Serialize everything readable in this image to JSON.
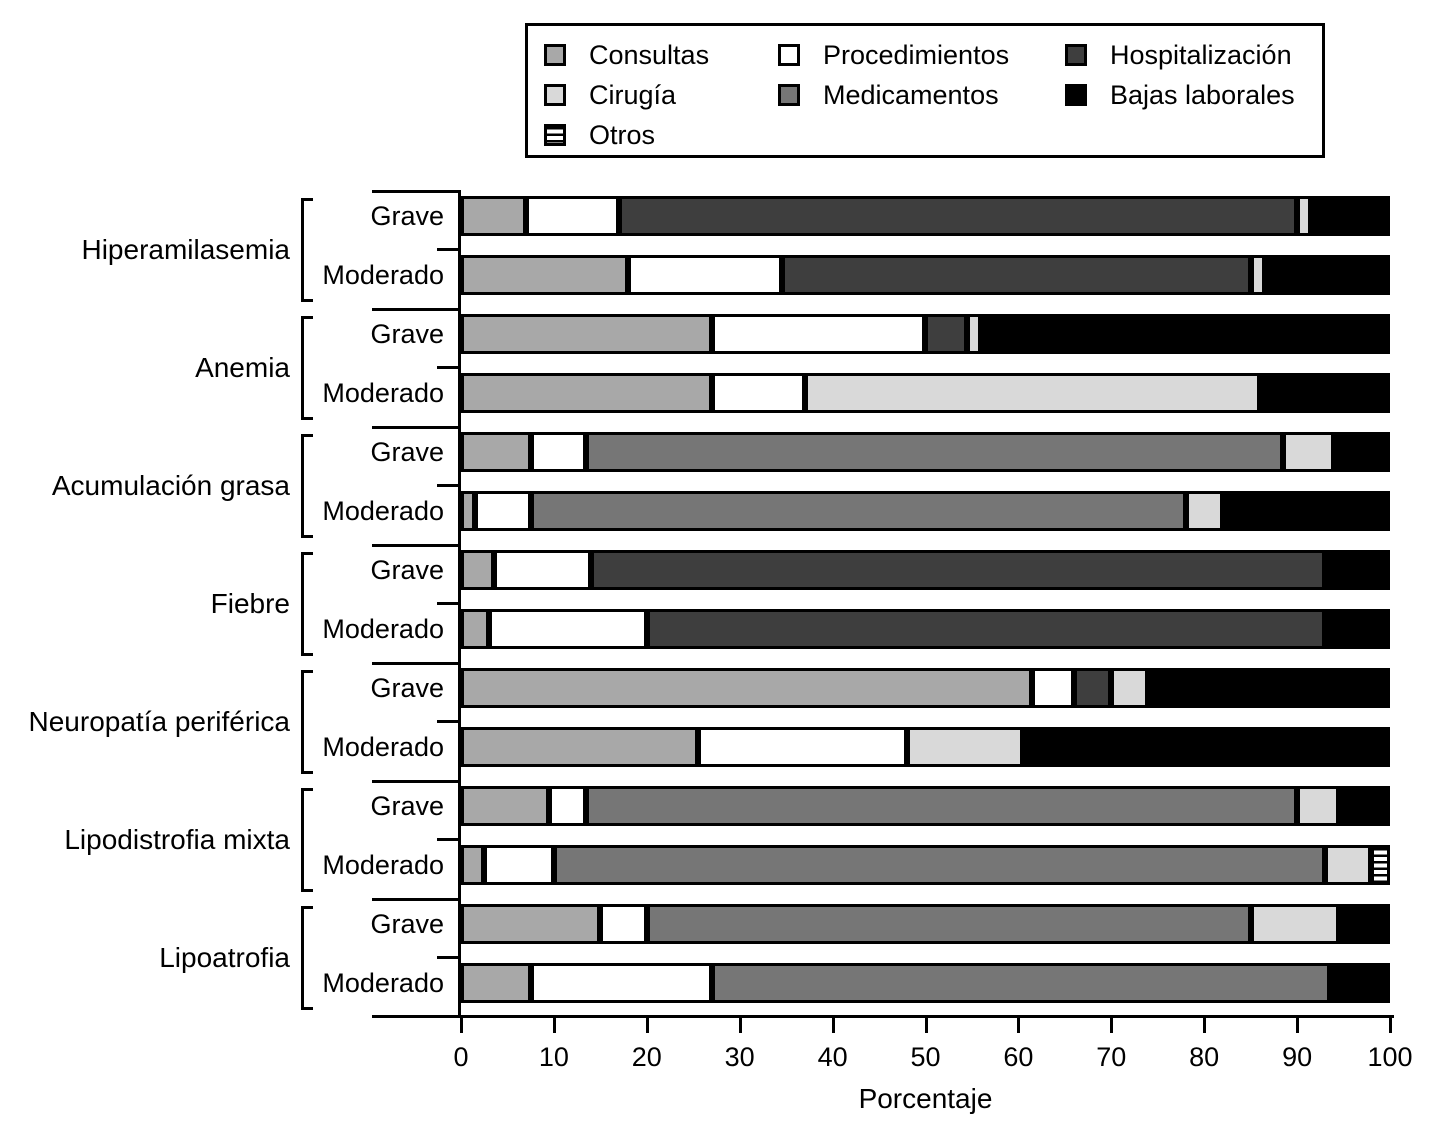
{
  "chart_data": {
    "type": "bar",
    "orientation": "horizontal",
    "stacked": true,
    "unit": "percent",
    "title": "",
    "xlabel": "Porcentaje",
    "xlim": [
      0,
      100
    ],
    "x_ticks": [
      0,
      10,
      20,
      30,
      40,
      50,
      60,
      70,
      80,
      90,
      100
    ],
    "grid": false,
    "legend_position": "top",
    "legend": [
      {
        "name": "Consultas",
        "color": "#a8a8a8",
        "pattern": "solid",
        "column": 0
      },
      {
        "name": "Cirugía",
        "color": "#d9d9d9",
        "pattern": "solid",
        "column": 0
      },
      {
        "name": "Otros",
        "color": "#ffffff",
        "pattern": "hstripes",
        "column": 0
      },
      {
        "name": "Procedimientos",
        "color": "#ffffff",
        "pattern": "solid",
        "column": 1
      },
      {
        "name": "Medicamentos",
        "color": "#767676",
        "pattern": "solid",
        "column": 1
      },
      {
        "name": "Hospitalización",
        "color": "#3e3e3e",
        "pattern": "solid",
        "column": 2
      },
      {
        "name": "Bajas laborales",
        "color": "#000000",
        "pattern": "solid",
        "column": 2
      }
    ],
    "groups": [
      {
        "label": "Hiperamilasemia",
        "bars": [
          {
            "severity": "Grave",
            "segments": [
              [
                "Consultas",
                7
              ],
              [
                "Procedimientos",
                10
              ],
              [
                "Hospitalización",
                73
              ],
              [
                "Cirugía",
                1.5
              ],
              [
                "Bajas laborales",
                8.5
              ]
            ]
          },
          {
            "severity": "Moderado",
            "segments": [
              [
                "Consultas",
                18
              ],
              [
                "Procedimientos",
                16.5
              ],
              [
                "Hospitalización",
                50.5
              ],
              [
                "Cirugía",
                1.5
              ],
              [
                "Bajas laborales",
                13.5
              ]
            ]
          }
        ]
      },
      {
        "label": "Anemia",
        "bars": [
          {
            "severity": "Grave",
            "segments": [
              [
                "Consultas",
                27
              ],
              [
                "Procedimientos",
                23
              ],
              [
                "Hospitalización",
                4.5
              ],
              [
                "Cirugía",
                1.5
              ],
              [
                "Bajas laborales",
                44
              ]
            ]
          },
          {
            "severity": "Moderado",
            "segments": [
              [
                "Consultas",
                27
              ],
              [
                "Procedimientos",
                10
              ],
              [
                "Cirugía",
                49
              ],
              [
                "Bajas laborales",
                14
              ]
            ]
          }
        ]
      },
      {
        "label": "Acumulación grasa",
        "bars": [
          {
            "severity": "Grave",
            "segments": [
              [
                "Consultas",
                7.5
              ],
              [
                "Procedimientos",
                6
              ],
              [
                "Medicamentos",
                75
              ],
              [
                "Cirugía",
                5.5
              ],
              [
                "Bajas laborales",
                6
              ]
            ]
          },
          {
            "severity": "Moderado",
            "segments": [
              [
                "Consultas",
                1.5
              ],
              [
                "Procedimientos",
                6
              ],
              [
                "Medicamentos",
                70.5
              ],
              [
                "Cirugía",
                4
              ],
              [
                "Bajas laborales",
                18
              ]
            ]
          }
        ]
      },
      {
        "label": "Fiebre",
        "bars": [
          {
            "severity": "Grave",
            "segments": [
              [
                "Consultas",
                3.5
              ],
              [
                "Procedimientos",
                10.5
              ],
              [
                "Hospitalización",
                79
              ],
              [
                "Bajas laborales",
                7
              ]
            ]
          },
          {
            "severity": "Moderado",
            "segments": [
              [
                "Consultas",
                3
              ],
              [
                "Procedimientos",
                17
              ],
              [
                "Hospitalización",
                73
              ],
              [
                "Bajas laborales",
                7
              ]
            ]
          }
        ]
      },
      {
        "label": "Neuropatía periférica",
        "bars": [
          {
            "severity": "Grave",
            "segments": [
              [
                "Consultas",
                61.5
              ],
              [
                "Procedimientos",
                4.5
              ],
              [
                "Hospitalización",
                4
              ],
              [
                "Cirugía",
                4
              ],
              [
                "Bajas laborales",
                26
              ]
            ]
          },
          {
            "severity": "Moderado",
            "segments": [
              [
                "Consultas",
                25.5
              ],
              [
                "Procedimientos",
                22.5
              ],
              [
                "Cirugía",
                12.5
              ],
              [
                "Bajas laborales",
                39.5
              ]
            ]
          }
        ]
      },
      {
        "label": "Lipodistrofia mixta",
        "bars": [
          {
            "severity": "Grave",
            "segments": [
              [
                "Consultas",
                9.5
              ],
              [
                "Procedimientos",
                4
              ],
              [
                "Medicamentos",
                76.5
              ],
              [
                "Cirugía",
                4.5
              ],
              [
                "Bajas laborales",
                5.5
              ]
            ]
          },
          {
            "severity": "Moderado",
            "segments": [
              [
                "Consultas",
                2.5
              ],
              [
                "Procedimientos",
                7.5
              ],
              [
                "Medicamentos",
                83
              ],
              [
                "Cirugía",
                5
              ],
              [
                "Otros",
                2
              ]
            ]
          }
        ]
      },
      {
        "label": "Lipoatrofia",
        "bars": [
          {
            "severity": "Grave",
            "segments": [
              [
                "Consultas",
                15
              ],
              [
                "Procedimientos",
                5
              ],
              [
                "Medicamentos",
                65
              ],
              [
                "Cirugía",
                9.5
              ],
              [
                "Bajas laborales",
                5.5
              ]
            ]
          },
          {
            "severity": "Moderado",
            "segments": [
              [
                "Consultas",
                7.5
              ],
              [
                "Procedimientos",
                19.5
              ],
              [
                "Medicamentos",
                66.5
              ],
              [
                "Bajas laborales",
                6.5
              ]
            ]
          }
        ]
      }
    ]
  }
}
